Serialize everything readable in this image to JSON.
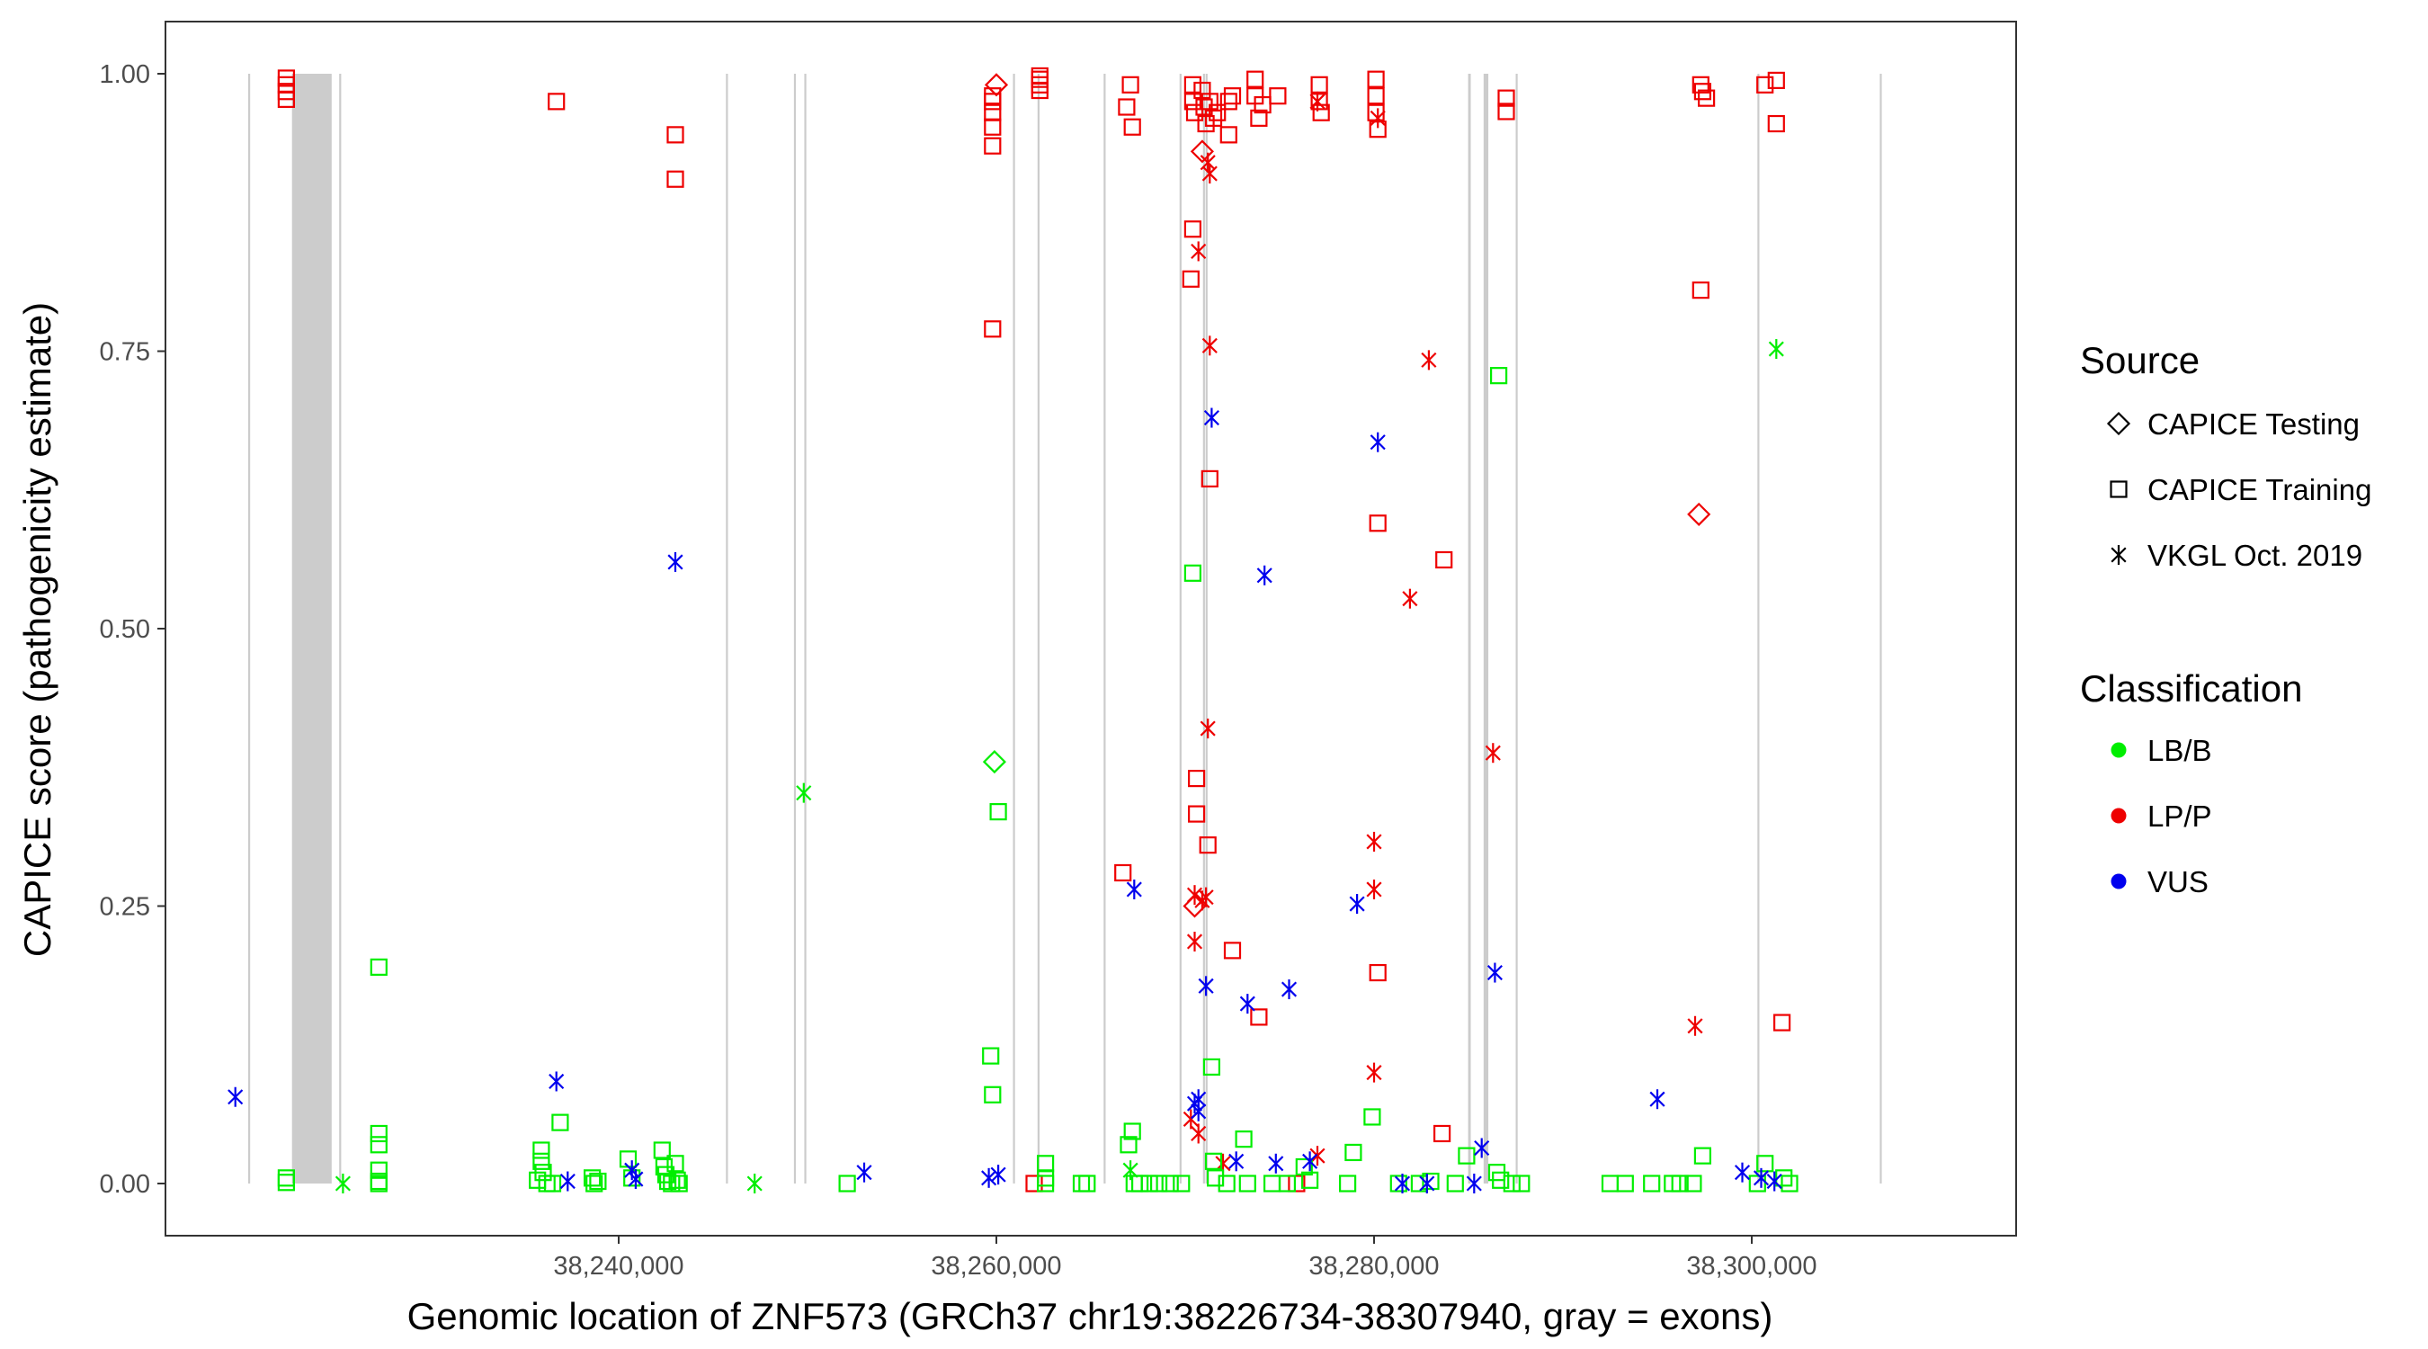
{
  "chart_data": {
    "type": "scatter",
    "title": "",
    "xlabel": "Genomic location of ZNF573 (GRCh37 chr19:38226734-38307940, gray = exons)",
    "ylabel": "CAPICE score (pathogenicity estimate)",
    "xlim": [
      38216000,
      38314000
    ],
    "ylim": [
      -0.047,
      1.047
    ],
    "x_ticks": [
      38240000,
      38260000,
      38280000,
      38300000
    ],
    "x_tick_labels": [
      "38,240,000",
      "38,260,000",
      "38,280,000",
      "38,300,000"
    ],
    "y_ticks": [
      0,
      0.25,
      0.5,
      0.75,
      1
    ],
    "y_tick_labels": [
      "0.00",
      "0.25",
      "0.50",
      "0.75",
      "1.00"
    ],
    "grid": false,
    "exons": [
      [
        38220380,
        38220420
      ],
      [
        38222700,
        38224800
      ],
      [
        38225200,
        38225260
      ],
      [
        38245680,
        38245720
      ],
      [
        38249280,
        38249320
      ],
      [
        38249830,
        38249870
      ],
      [
        38260880,
        38260920
      ],
      [
        38262180,
        38262220
      ],
      [
        38265680,
        38265720
      ],
      [
        38269700,
        38269750
      ],
      [
        38270940,
        38271000
      ],
      [
        38271080,
        38271130
      ],
      [
        38284980,
        38285120
      ],
      [
        38285800,
        38286050
      ],
      [
        38287500,
        38287560
      ],
      [
        38300300,
        38300360
      ],
      [
        38306780,
        38306840
      ]
    ],
    "legend": {
      "placement": "right",
      "source_title": "Source",
      "source_items": [
        {
          "label": "CAPICE Testing",
          "shape": "diamond"
        },
        {
          "label": "CAPICE Training",
          "shape": "square"
        },
        {
          "label": "VKGL Oct. 2019",
          "shape": "asterisk"
        }
      ],
      "class_title": "Classification",
      "class_items": [
        {
          "label": "LB/B",
          "color": "#00ee00"
        },
        {
          "label": "LP/P",
          "color": "#ee0000"
        },
        {
          "label": "VUS",
          "color": "#0000ee"
        }
      ]
    },
    "series": [
      {
        "name": "LP/P CAPICE Training",
        "classification": "LP/P",
        "source": "CAPICE Training",
        "points": [
          [
            38222400,
            0.996
          ],
          [
            38222400,
            0.99
          ],
          [
            38222400,
            0.984
          ],
          [
            38222400,
            0.977
          ],
          [
            38236700,
            0.975
          ],
          [
            38243000,
            0.945
          ],
          [
            38243000,
            0.905
          ],
          [
            38259800,
            0.98
          ],
          [
            38259800,
            0.975
          ],
          [
            38259800,
            0.965
          ],
          [
            38259800,
            0.952
          ],
          [
            38259800,
            0.935
          ],
          [
            38259800,
            0.77
          ],
          [
            38262300,
            0.998
          ],
          [
            38262300,
            0.995
          ],
          [
            38262300,
            0.99
          ],
          [
            38262300,
            0.985
          ],
          [
            38266900,
            0.97
          ],
          [
            38267100,
            0.99
          ],
          [
            38267200,
            0.952
          ],
          [
            38270400,
            0.99
          ],
          [
            38270400,
            0.975
          ],
          [
            38270500,
            0.965
          ],
          [
            38270400,
            0.86
          ],
          [
            38270300,
            0.815
          ],
          [
            38270900,
            0.985
          ],
          [
            38271000,
            0.97
          ],
          [
            38271100,
            0.955
          ],
          [
            38271300,
            0.975
          ],
          [
            38271500,
            0.96
          ],
          [
            38271700,
            0.965
          ],
          [
            38272300,
            0.945
          ],
          [
            38272300,
            0.975
          ],
          [
            38272500,
            0.98
          ],
          [
            38273700,
            0.995
          ],
          [
            38273700,
            0.98
          ],
          [
            38273900,
            0.96
          ],
          [
            38274100,
            0.972
          ],
          [
            38274900,
            0.98
          ],
          [
            38277100,
            0.99
          ],
          [
            38277100,
            0.975
          ],
          [
            38277200,
            0.965
          ],
          [
            38280100,
            0.995
          ],
          [
            38280100,
            0.98
          ],
          [
            38280100,
            0.965
          ],
          [
            38280200,
            0.95
          ],
          [
            38287000,
            0.978
          ],
          [
            38287000,
            0.966
          ],
          [
            38297300,
            0.99
          ],
          [
            38297400,
            0.984
          ],
          [
            38297600,
            0.978
          ],
          [
            38297300,
            0.805
          ],
          [
            38300700,
            0.99
          ],
          [
            38301300,
            0.994
          ],
          [
            38301300,
            0.955
          ],
          [
            38270600,
            0.365
          ],
          [
            38270600,
            0.333
          ],
          [
            38271200,
            0.305
          ],
          [
            38266700,
            0.28
          ],
          [
            38271300,
            0.635
          ],
          [
            38272500,
            0.21
          ],
          [
            38273900,
            0.15
          ],
          [
            38280200,
            0.595
          ],
          [
            38280200,
            0.19
          ],
          [
            38283600,
            0.045
          ],
          [
            38283700,
            0.562
          ],
          [
            38301600,
            0.145
          ],
          [
            38262000,
            0.0
          ],
          [
            38275900,
            0.0
          ]
        ]
      },
      {
        "name": "LP/P CAPICE Testing",
        "classification": "LP/P",
        "source": "CAPICE Testing",
        "points": [
          [
            38260000,
            0.99
          ],
          [
            38297200,
            0.603
          ],
          [
            38270500,
            0.25
          ],
          [
            38270900,
            0.93
          ]
        ]
      },
      {
        "name": "LP/P VKGL Oct. 2019",
        "classification": "LP/P",
        "source": "VKGL Oct. 2019",
        "points": [
          [
            38270700,
            0.84
          ],
          [
            38271200,
            0.92
          ],
          [
            38271300,
            0.91
          ],
          [
            38271300,
            0.755
          ],
          [
            38271200,
            0.41
          ],
          [
            38270500,
            0.26
          ],
          [
            38270900,
            0.255
          ],
          [
            38271100,
            0.258
          ],
          [
            38270500,
            0.218
          ],
          [
            38270300,
            0.058
          ],
          [
            38270700,
            0.045
          ],
          [
            38272000,
            0.018
          ],
          [
            38277000,
            0.975
          ],
          [
            38280200,
            0.96
          ],
          [
            38282900,
            0.742
          ],
          [
            38281900,
            0.527
          ],
          [
            38280000,
            0.308
          ],
          [
            38280000,
            0.265
          ],
          [
            38280000,
            0.1
          ],
          [
            38277000,
            0.025
          ],
          [
            38286300,
            0.388
          ],
          [
            38297000,
            0.142
          ]
        ]
      },
      {
        "name": "LB/B CAPICE Training",
        "classification": "LB/B",
        "source": "CAPICE Training",
        "points": [
          [
            38222400,
            0.005
          ],
          [
            38222400,
            0.001
          ],
          [
            38227300,
            0.195
          ],
          [
            38227300,
            0.045
          ],
          [
            38227300,
            0.035
          ],
          [
            38227300,
            0.012
          ],
          [
            38227300,
            0.002
          ],
          [
            38227300,
            0.0
          ],
          [
            38235900,
            0.03
          ],
          [
            38235900,
            0.02
          ],
          [
            38236000,
            0.01
          ],
          [
            38235700,
            0.003
          ],
          [
            38236200,
            0.0
          ],
          [
            38236900,
            0.055
          ],
          [
            38236500,
            0.0
          ],
          [
            38238600,
            0.005
          ],
          [
            38238700,
            0.0
          ],
          [
            38238900,
            0.002
          ],
          [
            38240500,
            0.022
          ],
          [
            38240700,
            0.005
          ],
          [
            38242300,
            0.03
          ],
          [
            38242400,
            0.015
          ],
          [
            38242500,
            0.008
          ],
          [
            38242600,
            0.002
          ],
          [
            38242800,
            0.0
          ],
          [
            38243000,
            0.018
          ],
          [
            38243100,
            0.003
          ],
          [
            38243200,
            0.0
          ],
          [
            38252100,
            0.0
          ],
          [
            38259700,
            0.115
          ],
          [
            38259800,
            0.08
          ],
          [
            38260100,
            0.335
          ],
          [
            38262600,
            0.018
          ],
          [
            38262600,
            0.005
          ],
          [
            38262600,
            0.0
          ],
          [
            38264500,
            0.0
          ],
          [
            38264800,
            0.0
          ],
          [
            38267000,
            0.035
          ],
          [
            38267200,
            0.047
          ],
          [
            38267300,
            0.0
          ],
          [
            38267600,
            0.0
          ],
          [
            38268100,
            0.0
          ],
          [
            38268600,
            0.0
          ],
          [
            38269200,
            0.0
          ],
          [
            38269800,
            0.0
          ],
          [
            38270400,
            0.55
          ],
          [
            38271400,
            0.105
          ],
          [
            38271500,
            0.02
          ],
          [
            38271600,
            0.005
          ],
          [
            38272200,
            0.0
          ],
          [
            38273100,
            0.04
          ],
          [
            38273300,
            0.0
          ],
          [
            38274600,
            0.0
          ],
          [
            38275400,
            0.0
          ],
          [
            38276300,
            0.015
          ],
          [
            38276600,
            0.003
          ],
          [
            38278900,
            0.028
          ],
          [
            38278600,
            0.0
          ],
          [
            38279900,
            0.06
          ],
          [
            38281300,
            0.0
          ],
          [
            38282400,
            0.0
          ],
          [
            38283000,
            0.002
          ],
          [
            38284300,
            0.0
          ],
          [
            38284900,
            0.025
          ],
          [
            38286600,
            0.728
          ],
          [
            38286500,
            0.01
          ],
          [
            38286700,
            0.003
          ],
          [
            38287300,
            0.0
          ],
          [
            38287800,
            0.0
          ],
          [
            38292500,
            0.0
          ],
          [
            38293300,
            0.0
          ],
          [
            38294700,
            0.0
          ],
          [
            38295800,
            0.0
          ],
          [
            38296200,
            0.0
          ],
          [
            38296900,
            0.0
          ],
          [
            38297400,
            0.025
          ],
          [
            38300300,
            0.0
          ],
          [
            38300700,
            0.018
          ],
          [
            38301700,
            0.005
          ],
          [
            38302000,
            0.0
          ]
        ]
      },
      {
        "name": "LB/B CAPICE Testing",
        "classification": "LB/B",
        "source": "CAPICE Testing",
        "points": [
          [
            38259900,
            0.38
          ]
        ]
      },
      {
        "name": "LB/B VKGL Oct. 2019",
        "classification": "LB/B",
        "source": "VKGL Oct. 2019",
        "points": [
          [
            38225400,
            0.0
          ],
          [
            38247200,
            0.0
          ],
          [
            38249800,
            0.352
          ],
          [
            38267100,
            0.012
          ],
          [
            38301300,
            0.752
          ]
        ]
      },
      {
        "name": "VUS VKGL Oct. 2019",
        "classification": "VUS",
        "source": "VKGL Oct. 2019",
        "points": [
          [
            38219700,
            0.078
          ],
          [
            38236700,
            0.092
          ],
          [
            38237300,
            0.002
          ],
          [
            38240700,
            0.012
          ],
          [
            38240900,
            0.004
          ],
          [
            38243000,
            0.56
          ],
          [
            38253000,
            0.01
          ],
          [
            38259600,
            0.005
          ],
          [
            38260100,
            0.008
          ],
          [
            38267300,
            0.265
          ],
          [
            38270500,
            0.072
          ],
          [
            38270700,
            0.076
          ],
          [
            38270700,
            0.065
          ],
          [
            38271100,
            0.178
          ],
          [
            38271400,
            0.69
          ],
          [
            38272700,
            0.02
          ],
          [
            38273300,
            0.162
          ],
          [
            38274200,
            0.548
          ],
          [
            38274800,
            0.018
          ],
          [
            38275500,
            0.175
          ],
          [
            38276600,
            0.02
          ],
          [
            38279100,
            0.252
          ],
          [
            38280200,
            0.668
          ],
          [
            38281500,
            0.0
          ],
          [
            38282800,
            0.0
          ],
          [
            38285700,
            0.032
          ],
          [
            38285300,
            0.0
          ],
          [
            38286400,
            0.19
          ],
          [
            38295000,
            0.076
          ],
          [
            38299500,
            0.01
          ],
          [
            38300500,
            0.005
          ],
          [
            38301200,
            0.002
          ]
        ]
      }
    ]
  }
}
